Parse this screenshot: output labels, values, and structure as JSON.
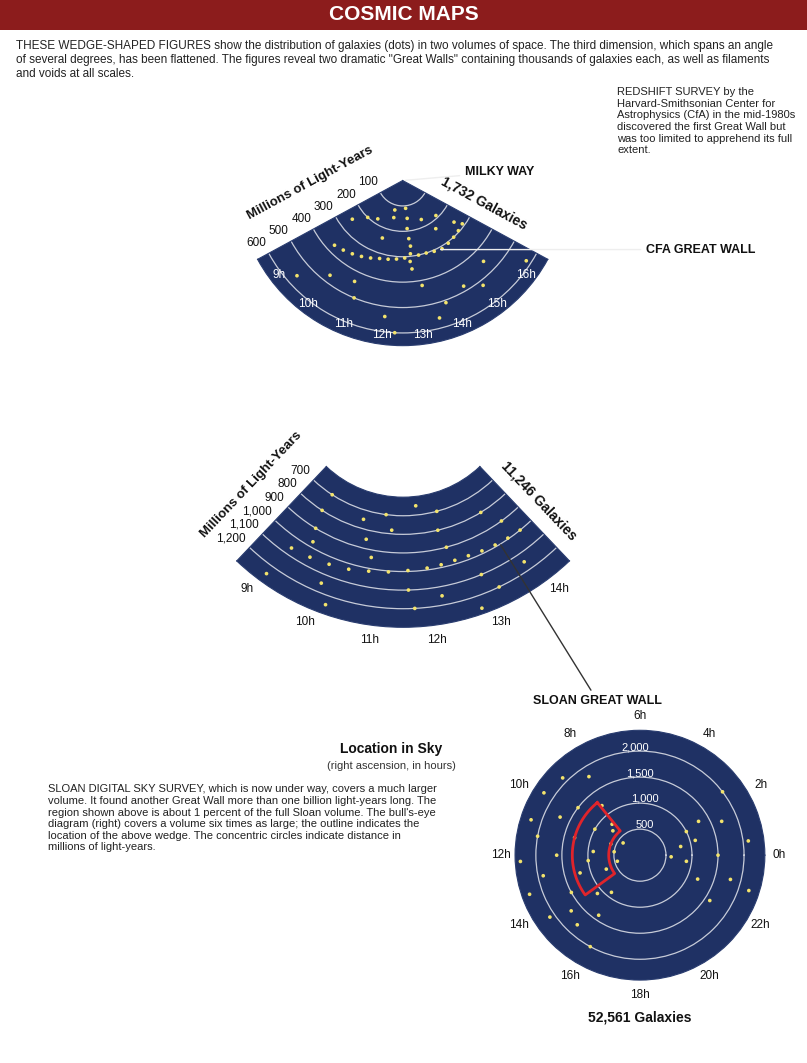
{
  "header": {
    "title": "COSMIC MAPS",
    "intro": "THESE WEDGE-SHAPED FIGURES show the distribution of galaxies (dots) in two volumes of space. The third dimension, which spans an angle of several degrees, has been flattened. The figures reveal two dramatic \"Great Walls\" containing thousands of galaxies each, as well as filaments and voids at all scales."
  },
  "chart_data": [
    {
      "type": "polar",
      "title": "1,732 Galaxies",
      "ylabel": "Millions of Light-Years",
      "caption": "REDSHIFT SURVEY by the Harvard-Smithsonian Center for Astrophysics (CfA) in the mid-1980s discovered the first Great Wall but was too limited to apprehend its full extent.",
      "x": [
        12.9,
        12.95,
        12.85,
        12.9,
        12.95,
        12.9,
        12.85,
        12.9,
        9.4,
        9.8,
        10.2,
        10.6,
        11.0,
        11.4,
        11.8,
        12.2,
        12.6,
        13.3,
        13.7,
        14.1,
        14.5,
        14.9,
        15.3,
        15.7,
        16.1,
        9.0,
        9.6,
        10.3,
        11.2,
        11.6,
        14.2,
        14.8,
        15.4,
        15.9,
        10.0,
        11.0,
        12.0,
        13.5,
        14.5,
        15.5,
        9.3,
        10.8,
        12.3,
        13.8,
        15.0,
        16.3,
        11.5,
        13.2
      ],
      "values": [
        110,
        150,
        190,
        230,
        260,
        290,
        320,
        350,
        370,
        360,
        350,
        340,
        330,
        320,
        315,
        310,
        305,
        300,
        300,
        305,
        310,
        305,
        300,
        295,
        290,
        250,
        200,
        180,
        240,
        150,
        170,
        230,
        190,
        260,
        470,
        500,
        540,
        560,
        480,
        450,
        560,
        440,
        600,
        510,
        520,
        580,
        120,
        420
      ],
      "color": "#f3e36c",
      "marker": "o",
      "xlim": [
        8.4,
        16.6
      ],
      "xticks": [
        {
          "value": 9,
          "label": "9h"
        },
        {
          "value": 10,
          "label": "10h"
        },
        {
          "value": 11,
          "label": "11h"
        },
        {
          "value": 12,
          "label": "12h"
        },
        {
          "value": 13,
          "label": "13h"
        },
        {
          "value": 14,
          "label": "14h"
        },
        {
          "value": 15,
          "label": "15h"
        },
        {
          "value": 16,
          "label": "16h"
        }
      ],
      "ylim": [
        0,
        650
      ],
      "yticks": [
        100,
        200,
        300,
        400,
        500,
        600
      ],
      "grid": false,
      "annotations": [
        {
          "text": "MILKY WAY",
          "x": 12.5,
          "y": 0
        },
        {
          "text": "CFA GREAT WALL",
          "x": 14.3,
          "y": 305
        }
      ]
    },
    {
      "type": "polar",
      "title": "11,246 Galaxies",
      "ylabel": "Millions of Light-Years",
      "xlabel": "Location in Sky",
      "xlabel_detail": "(right ascension, in hours)",
      "caption": "SLOAN DIGITAL SKY SURVEY, which is now under way, covers a much larger volume. It found another Great Wall more than one billion light-years long. The region shown above is about 1 percent of the full Sloan volume. The bull's-eye diagram (right) covers a volume six times as large; the outline indicates the location of the above wedge. The concentric circles indicate distance in millions of light-years.",
      "x": [
        9.2,
        9.6,
        10.0,
        10.4,
        10.8,
        11.2,
        11.6,
        12.0,
        12.3,
        12.6,
        12.9,
        13.2,
        13.5,
        13.8,
        14.1,
        9.3,
        9.3,
        9.4,
        9.5,
        10.4,
        10.6,
        10.8,
        11.0,
        11.2,
        11.6,
        11.7,
        12.5,
        12.4,
        12.5,
        13.0,
        13.2,
        13.6,
        13.9,
        10.0,
        10.2,
        12.2,
        13.8,
        9.1,
        11.9,
        12.8
      ],
      "values": [
        1060,
        1050,
        1040,
        1030,
        1015,
        1005,
        995,
        990,
        985,
        980,
        980,
        985,
        990,
        995,
        1000,
        700,
        800,
        900,
        970,
        750,
        850,
        940,
        700,
        780,
        1100,
        1200,
        700,
        800,
        900,
        1100,
        1200,
        800,
        900,
        1150,
        1250,
        1150,
        1150,
        1250,
        650,
        1270
      ],
      "color": "#f3e36c",
      "marker": "o",
      "xlim": [
        8.6,
        14.4
      ],
      "xticks": [
        {
          "value": 9,
          "label": "9h"
        },
        {
          "value": 10,
          "label": "10h"
        },
        {
          "value": 11,
          "label": "11h"
        },
        {
          "value": 12,
          "label": "12h"
        },
        {
          "value": 13,
          "label": "13h"
        },
        {
          "value": 14,
          "label": "14h"
        }
      ],
      "ylim": [
        600,
        1300
      ],
      "yticks": [
        700,
        800,
        900,
        {
          "value": 1000,
          "label": "1,000"
        },
        {
          "value": 1100,
          "label": "1,100"
        },
        {
          "value": 1200,
          "label": "1,200"
        }
      ],
      "grid": false,
      "annotations": [
        {
          "text": "SLOAN GREAT WALL",
          "x": 13.6,
          "y": 990
        }
      ]
    },
    {
      "type": "polar",
      "title": "52,561 Galaxies",
      "x": [
        8.2,
        8.5,
        9.0,
        9.2,
        9.5,
        9.8,
        10.0,
        10.3,
        10.6,
        11.0,
        11.3,
        11.7,
        12.0,
        12.4,
        12.8,
        13.1,
        13.5,
        13.9,
        14.3,
        14.8,
        15.2,
        15.7,
        16.1,
        8.8,
        10.8,
        12.2,
        13.3,
        14.6,
        15.5,
        11.5,
        9.6,
        13.0,
        22.5,
        23.0,
        23.5,
        0.0,
        0.5,
        1.0,
        1.5,
        2.0,
        2.5,
        22.8,
        23.8,
        0.8,
        1.8,
        21.8
      ],
      "values": [
        1800,
        1200,
        2100,
        700,
        1500,
        2200,
        1000,
        1700,
        600,
        1300,
        2000,
        900,
        1600,
        1000,
        1900,
        1200,
        700,
        1500,
        2100,
        1100,
        1800,
        1400,
        2000,
        800,
        2200,
        2300,
        2250,
        1700,
        900,
        500,
        400,
        450,
        1200,
        1800,
        900,
        1500,
        2100,
        1100,
        1700,
        1300,
        2000,
        2200,
        600,
        800,
        1000,
        1600
      ],
      "color": "#f3e36c",
      "marker": "o",
      "xlim": [
        0,
        24
      ],
      "xticks": [
        {
          "value": 0,
          "label": "0h"
        },
        {
          "value": 2,
          "label": "2h"
        },
        {
          "value": 4,
          "label": "4h"
        },
        {
          "value": 6,
          "label": "6h"
        },
        {
          "value": 8,
          "label": "8h"
        },
        {
          "value": 10,
          "label": "10h"
        },
        {
          "value": 12,
          "label": "12h"
        },
        {
          "value": 14,
          "label": "14h"
        },
        {
          "value": 16,
          "label": "16h"
        },
        {
          "value": 18,
          "label": "18h"
        },
        {
          "value": 20,
          "label": "20h"
        },
        {
          "value": 22,
          "label": "22h"
        }
      ],
      "ylim": [
        0,
        2400
      ],
      "yticks": [
        500,
        {
          "value": 1000,
          "label": "1,000"
        },
        {
          "value": 1500,
          "label": "1,500"
        },
        {
          "value": 2000,
          "label": "2,000"
        }
      ],
      "grid": true
    }
  ]
}
